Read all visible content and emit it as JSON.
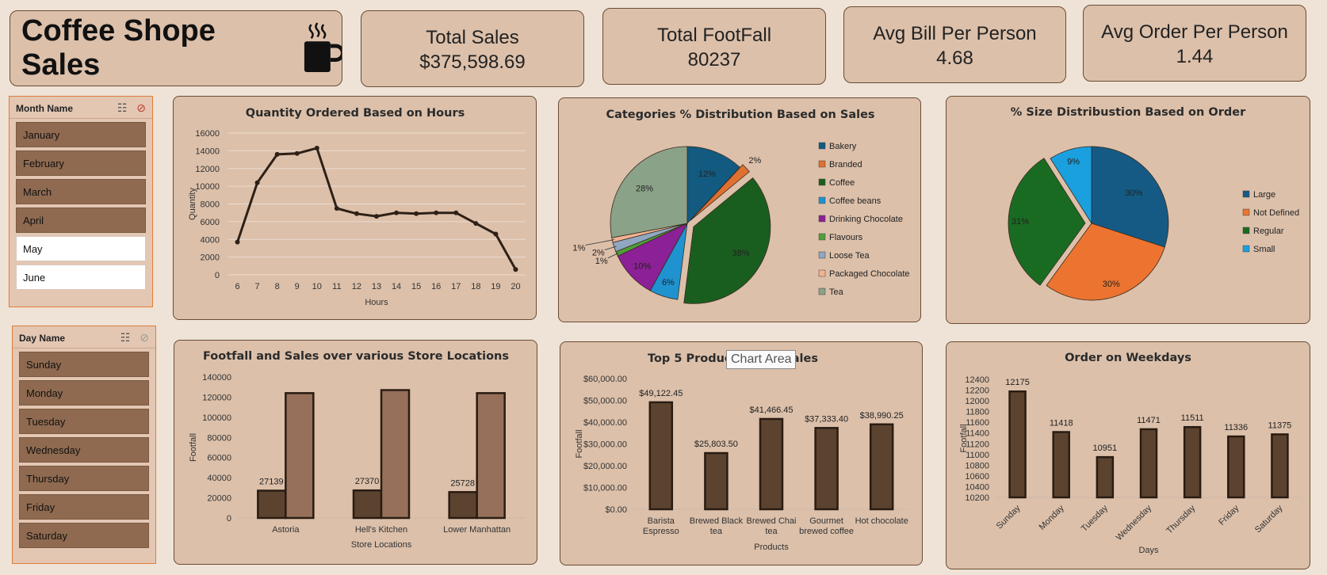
{
  "header": {
    "title": "Coffee Shope Sales"
  },
  "kpis": [
    {
      "label": "Total Sales",
      "value": "$375,598.69"
    },
    {
      "label": "Total FootFall",
      "value": "80237"
    },
    {
      "label": "Avg Bill Per Person",
      "value": "4.68"
    },
    {
      "label": "Avg Order Per Person",
      "value": "1.44"
    }
  ],
  "month_slicer": {
    "title": "Month Name",
    "items": [
      {
        "label": "January",
        "selected": true
      },
      {
        "label": "February",
        "selected": true
      },
      {
        "label": "March",
        "selected": true
      },
      {
        "label": "April",
        "selected": true
      },
      {
        "label": "May",
        "selected": false
      },
      {
        "label": "June",
        "selected": false
      }
    ]
  },
  "day_slicer": {
    "title": "Day Name",
    "items": [
      {
        "label": "Sunday",
        "selected": true
      },
      {
        "label": "Monday",
        "selected": true
      },
      {
        "label": "Tuesday",
        "selected": true
      },
      {
        "label": "Wednesday",
        "selected": true
      },
      {
        "label": "Thursday",
        "selected": true
      },
      {
        "label": "Friday",
        "selected": true
      },
      {
        "label": "Saturday",
        "selected": true
      }
    ]
  },
  "tooltip": "Chart Area",
  "colors": {
    "bar_dark": "#5c4330",
    "bar_light": "#96705a",
    "line": "#2e2016"
  },
  "chart_data": [
    {
      "id": "hours",
      "type": "line",
      "title": "Quantity Ordered Based on Hours",
      "xlabel": "Hours",
      "ylabel": "Quantity",
      "x": [
        6,
        7,
        8,
        9,
        10,
        11,
        12,
        13,
        14,
        15,
        16,
        17,
        18,
        19,
        20
      ],
      "values": [
        3700,
        10400,
        13600,
        13700,
        14300,
        7500,
        6900,
        6600,
        7000,
        6900,
        7000,
        7000,
        5800,
        4600,
        600
      ],
      "ylim": [
        0,
        16000
      ],
      "yticks": [
        0,
        2000,
        4000,
        6000,
        8000,
        10000,
        12000,
        14000,
        16000
      ],
      "grid": true
    },
    {
      "id": "categories",
      "type": "pie",
      "title": "Categories % Distribution Based on Sales",
      "legend_position": "right",
      "slices": [
        {
          "label": "Bakery",
          "pct": 12,
          "text": "12%",
          "color": "#135a80"
        },
        {
          "label": "Branded",
          "pct": 2,
          "text": "2%",
          "color": "#e07030"
        },
        {
          "label": "Coffee",
          "pct": 38,
          "text": "38%",
          "color": "#1a5e1f"
        },
        {
          "label": "Coffee beans",
          "pct": 6,
          "text": "6%",
          "color": "#1e93d0"
        },
        {
          "label": "Drinking Chocolate",
          "pct": 10,
          "text": "10%",
          "color": "#8c2096"
        },
        {
          "label": "Flavours",
          "pct": 1,
          "text": "1%",
          "color": "#4f9e3a"
        },
        {
          "label": "Loose Tea",
          "pct": 2,
          "text": "2%",
          "color": "#8fa7c0"
        },
        {
          "label": "Packaged Chocolate",
          "pct": 1,
          "text": "1%",
          "color": "#efb392"
        },
        {
          "label": "Tea",
          "pct": 28,
          "text": "28%",
          "color": "#8aa287"
        }
      ]
    },
    {
      "id": "sizes",
      "type": "pie",
      "title": "% Size Distribustion Based on Order",
      "legend_position": "right",
      "slices": [
        {
          "label": "Large",
          "pct": 30,
          "text": "30%",
          "color": "#155a84"
        },
        {
          "label": "Not Defined",
          "pct": 30,
          "text": "30%",
          "color": "#ec7430"
        },
        {
          "label": "Regular",
          "pct": 31,
          "text": "31%",
          "color": "#1a6b22"
        },
        {
          "label": "Small",
          "pct": 9,
          "text": "9%",
          "color": "#1aa0de"
        }
      ]
    },
    {
      "id": "locations",
      "type": "bar",
      "title": "Footfall and Sales over various Store Locations",
      "xlabel": "Store Locations",
      "ylabel": "Footfall",
      "categories": [
        "Astoria",
        "Hell's Kitchen",
        "Lower Manhattan"
      ],
      "series": [
        {
          "values": [
            27139,
            27370,
            25728
          ],
          "labels": [
            "27139",
            "27370",
            "25728"
          ]
        },
        {
          "values": [
            124000,
            127000,
            124000
          ]
        }
      ],
      "ylim": [
        0,
        140000
      ],
      "yticks": [
        0,
        20000,
        40000,
        60000,
        80000,
        100000,
        120000,
        140000
      ]
    },
    {
      "id": "products",
      "type": "bar",
      "title_left": "Top 5 Product",
      "title_right": "Sales",
      "xlabel": "Products",
      "ylabel": "Footfall",
      "categories": [
        [
          "Barista",
          "Espresso"
        ],
        [
          "Brewed Black",
          "tea"
        ],
        [
          "Brewed Chai",
          "tea"
        ],
        [
          "Gourmet",
          "brewed coffee"
        ],
        [
          "Hot chocolate"
        ]
      ],
      "values": [
        49122.45,
        25803.5,
        41466.45,
        37333.4,
        38990.25
      ],
      "value_labels": [
        "$49,122.45",
        "$25,803.50",
        "$41,466.45",
        "$37,333.40",
        "$38,990.25"
      ],
      "ylim": [
        0,
        60000
      ],
      "ytick_labels": [
        "$0.00",
        "$10,000.00",
        "$20,000.00",
        "$30,000.00",
        "$40,000.00",
        "$50,000.00",
        "$60,000.00"
      ]
    },
    {
      "id": "weekdays",
      "type": "bar",
      "title": "Order on Weekdays",
      "xlabel": "Days",
      "ylabel": "Footfall",
      "categories": [
        "Sunday",
        "Monday",
        "Tuesday",
        "Wednesday",
        "Thursday",
        "Friday",
        "Saturday"
      ],
      "values": [
        12175,
        11418,
        10951,
        11471,
        11511,
        11336,
        11375
      ],
      "value_labels": [
        "12175",
        "11418",
        "10951",
        "11471",
        "11511",
        "11336",
        "11375"
      ],
      "ylim": [
        10200,
        12400
      ],
      "yticks": [
        10200,
        10400,
        10600,
        10800,
        11000,
        11200,
        11400,
        11600,
        11800,
        12000,
        12200,
        12400
      ]
    }
  ]
}
